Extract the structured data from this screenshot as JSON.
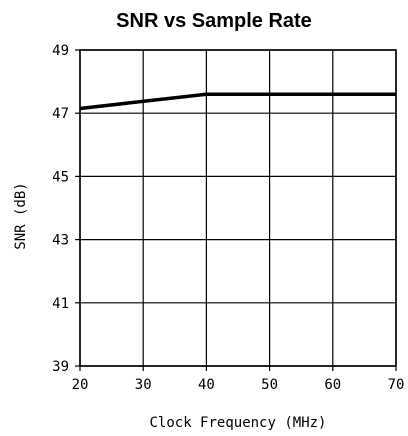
{
  "chart_data": {
    "type": "line",
    "title": "SNR vs Sample Rate",
    "xlabel": "Clock Frequency (MHz)",
    "ylabel": "SNR (dB)",
    "xlim": [
      20,
      70
    ],
    "ylim": [
      39,
      49
    ],
    "xticks": [
      "20",
      "30",
      "40",
      "50",
      "60",
      "70"
    ],
    "yticks": [
      "49",
      "47",
      "45",
      "43",
      "41",
      "39"
    ],
    "grid": true,
    "series": [
      {
        "x": [
          20,
          40,
          70
        ],
        "y": [
          47.15,
          47.6,
          47.6
        ]
      }
    ]
  }
}
